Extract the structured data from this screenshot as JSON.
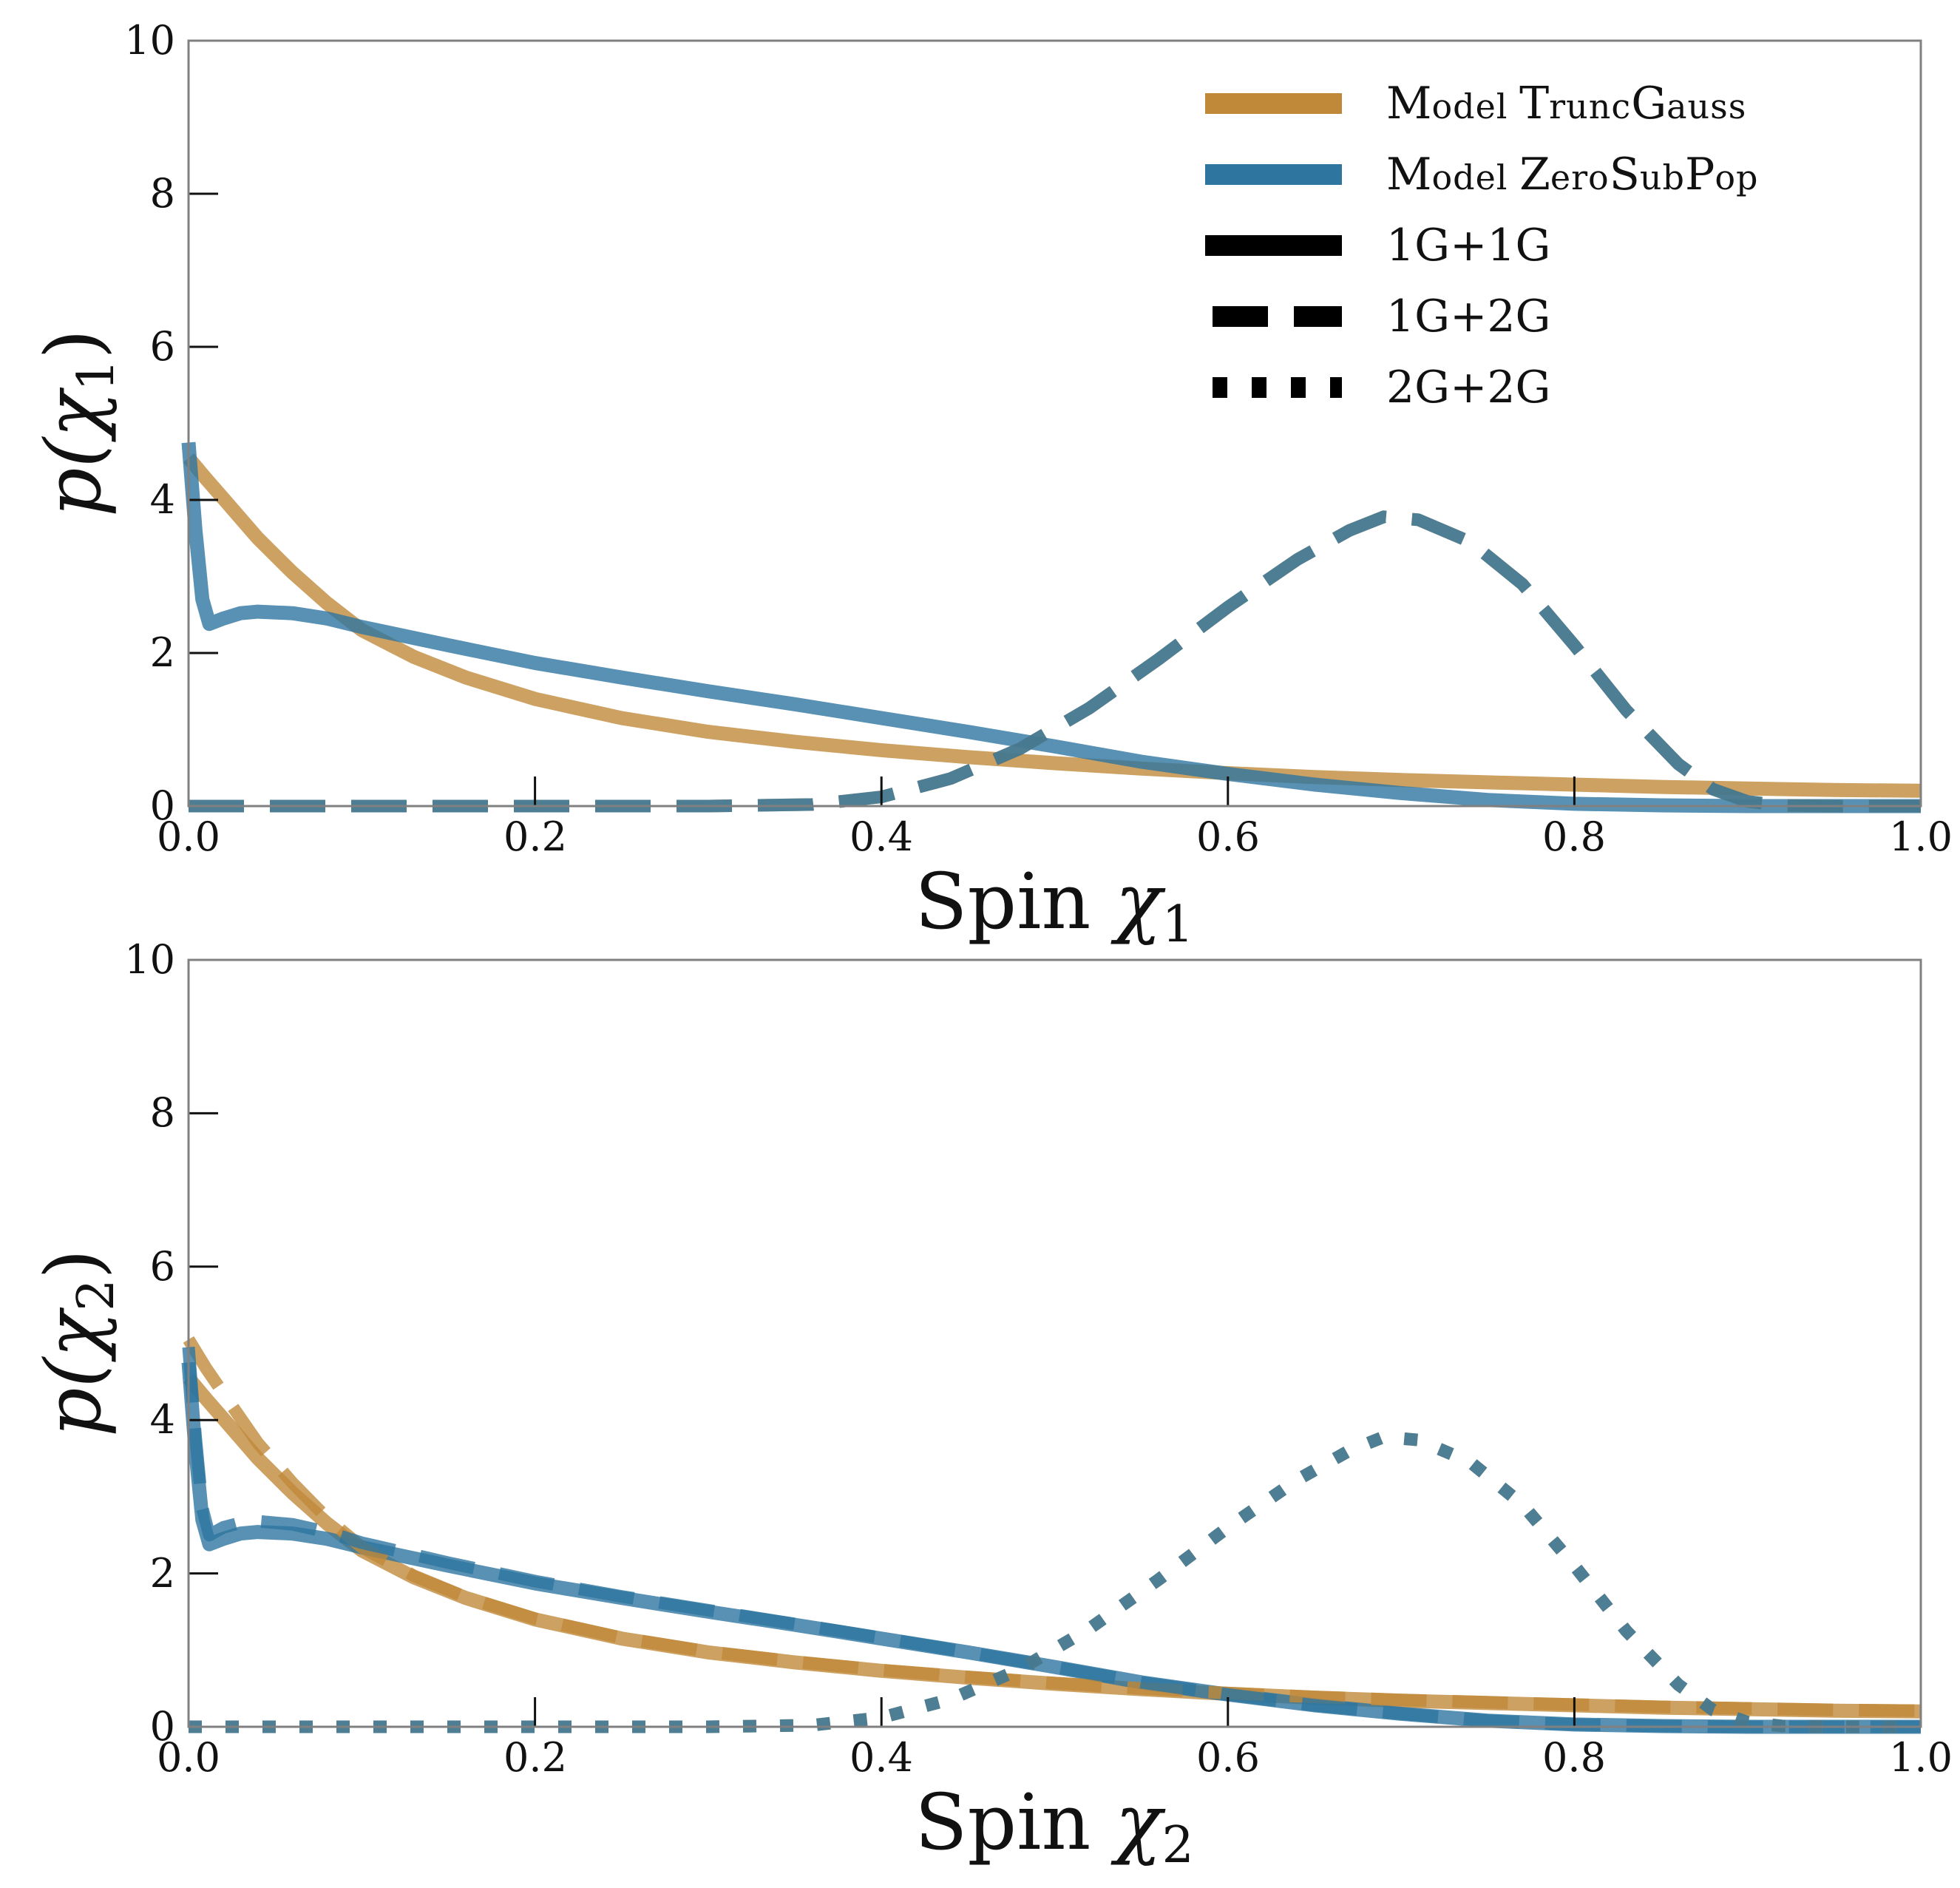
{
  "colors": {
    "trunc": "#C0893A",
    "zero": "#2E76A0",
    "frame": "#808080",
    "legend_style": "#000000"
  },
  "legend": {
    "model_trunc": [
      "M",
      "odel ",
      "T",
      "runc",
      "G",
      "auss"
    ],
    "model_zero": [
      "M",
      "odel ",
      "Z",
      "ero",
      "S",
      "ub",
      "P",
      "op"
    ],
    "g11": "1G+1G",
    "g12": "1G+2G",
    "g22": "2G+2G"
  },
  "chart_data": [
    {
      "type": "line",
      "id": "chi1",
      "ylabel_parts": [
        "p(χ",
        "1",
        ")"
      ],
      "xlabel_parts": [
        "Spin ",
        "χ",
        "1"
      ],
      "xlim": [
        0,
        1
      ],
      "ylim": [
        0,
        10
      ],
      "xticks": [
        "0.0",
        "0.2",
        "0.4",
        "0.6",
        "0.8",
        "1.0"
      ],
      "yticks": [
        "0",
        "2",
        "4",
        "6",
        "8",
        "10"
      ],
      "series": [
        {
          "name": "TruncGauss 1G+1G",
          "model": "trunc",
          "style": "solid",
          "curve": "trunc"
        },
        {
          "name": "ZeroSubPop 1G+1G",
          "model": "zero",
          "style": "solid",
          "curve": "zero"
        },
        {
          "name": "TruncGauss 1G+2G",
          "model": "trunc",
          "style": "dashed",
          "curve": "peak"
        },
        {
          "name": "ZeroSubPop 1G+2G",
          "model": "zero",
          "style": "dashed",
          "curve": "peak"
        }
      ]
    },
    {
      "type": "line",
      "id": "chi2",
      "ylabel_parts": [
        "p(χ",
        "2",
        ")"
      ],
      "xlabel_parts": [
        "Spin ",
        "χ",
        "2"
      ],
      "xlim": [
        0,
        1
      ],
      "ylim": [
        0,
        10
      ],
      "xticks": [
        "0.0",
        "0.2",
        "0.4",
        "0.6",
        "0.8",
        "1.0"
      ],
      "yticks": [
        "0",
        "2",
        "4",
        "6",
        "8",
        "10"
      ],
      "series": [
        {
          "name": "TruncGauss 1G+1G",
          "model": "trunc",
          "style": "solid",
          "curve": "trunc"
        },
        {
          "name": "ZeroSubPop 1G+1G",
          "model": "zero",
          "style": "solid",
          "curve": "zero"
        },
        {
          "name": "TruncGauss 1G+2G",
          "model": "trunc",
          "style": "dashed",
          "curve": "trunc2"
        },
        {
          "name": "ZeroSubPop 1G+2G",
          "model": "zero",
          "style": "dashed",
          "curve": "zero2"
        },
        {
          "name": "TruncGauss 2G+2G",
          "model": "trunc",
          "style": "dotted",
          "curve": "peak"
        },
        {
          "name": "ZeroSubPop 2G+2G",
          "model": "zero",
          "style": "dotted",
          "curve": "peak"
        }
      ]
    }
  ],
  "curves": {
    "trunc": [
      [
        0,
        4.55
      ],
      [
        0.01,
        4.28
      ],
      [
        0.02,
        4.02
      ],
      [
        0.04,
        3.5
      ],
      [
        0.06,
        3.05
      ],
      [
        0.08,
        2.65
      ],
      [
        0.1,
        2.3
      ],
      [
        0.13,
        1.95
      ],
      [
        0.16,
        1.68
      ],
      [
        0.2,
        1.4
      ],
      [
        0.25,
        1.15
      ],
      [
        0.3,
        0.97
      ],
      [
        0.35,
        0.84
      ],
      [
        0.4,
        0.73
      ],
      [
        0.45,
        0.64
      ],
      [
        0.5,
        0.56
      ],
      [
        0.55,
        0.49
      ],
      [
        0.6,
        0.43
      ],
      [
        0.65,
        0.38
      ],
      [
        0.7,
        0.34
      ],
      [
        0.75,
        0.31
      ],
      [
        0.8,
        0.28
      ],
      [
        0.85,
        0.25
      ],
      [
        0.9,
        0.23
      ],
      [
        0.95,
        0.21
      ],
      [
        1.0,
        0.2
      ]
    ],
    "zero": [
      [
        0,
        4.75
      ],
      [
        0.004,
        3.6
      ],
      [
        0.008,
        2.7
      ],
      [
        0.012,
        2.38
      ],
      [
        0.02,
        2.45
      ],
      [
        0.03,
        2.52
      ],
      [
        0.04,
        2.54
      ],
      [
        0.06,
        2.52
      ],
      [
        0.08,
        2.45
      ],
      [
        0.1,
        2.34
      ],
      [
        0.15,
        2.1
      ],
      [
        0.2,
        1.87
      ],
      [
        0.25,
        1.68
      ],
      [
        0.3,
        1.5
      ],
      [
        0.35,
        1.33
      ],
      [
        0.4,
        1.15
      ],
      [
        0.45,
        0.97
      ],
      [
        0.5,
        0.78
      ],
      [
        0.55,
        0.58
      ],
      [
        0.6,
        0.42
      ],
      [
        0.65,
        0.28
      ],
      [
        0.7,
        0.17
      ],
      [
        0.75,
        0.08
      ],
      [
        0.8,
        0.03
      ],
      [
        0.85,
        0.01
      ],
      [
        0.9,
        0.0
      ],
      [
        1.0,
        0.0
      ]
    ],
    "trunc2": [
      [
        0,
        5.05
      ],
      [
        0.01,
        4.68
      ],
      [
        0.02,
        4.35
      ],
      [
        0.04,
        3.7
      ],
      [
        0.06,
        3.18
      ],
      [
        0.08,
        2.72
      ],
      [
        0.1,
        2.34
      ],
      [
        0.13,
        1.97
      ],
      [
        0.16,
        1.69
      ],
      [
        0.2,
        1.41
      ],
      [
        0.25,
        1.16
      ],
      [
        0.3,
        0.98
      ],
      [
        0.35,
        0.85
      ],
      [
        0.4,
        0.74
      ],
      [
        0.45,
        0.65
      ],
      [
        0.5,
        0.57
      ],
      [
        0.55,
        0.5
      ],
      [
        0.6,
        0.44
      ],
      [
        0.65,
        0.39
      ],
      [
        0.7,
        0.35
      ],
      [
        0.75,
        0.32
      ],
      [
        0.8,
        0.29
      ],
      [
        0.85,
        0.26
      ],
      [
        0.9,
        0.24
      ],
      [
        0.95,
        0.22
      ],
      [
        1.0,
        0.21
      ]
    ],
    "zero2": [
      [
        0,
        4.95
      ],
      [
        0.004,
        3.8
      ],
      [
        0.008,
        2.85
      ],
      [
        0.012,
        2.5
      ],
      [
        0.02,
        2.6
      ],
      [
        0.03,
        2.66
      ],
      [
        0.04,
        2.68
      ],
      [
        0.06,
        2.64
      ],
      [
        0.08,
        2.54
      ],
      [
        0.1,
        2.4
      ],
      [
        0.15,
        2.14
      ],
      [
        0.2,
        1.9
      ],
      [
        0.25,
        1.7
      ],
      [
        0.3,
        1.52
      ],
      [
        0.35,
        1.34
      ],
      [
        0.4,
        1.16
      ],
      [
        0.45,
        0.97
      ],
      [
        0.5,
        0.78
      ],
      [
        0.55,
        0.58
      ],
      [
        0.6,
        0.42
      ],
      [
        0.65,
        0.28
      ],
      [
        0.7,
        0.17
      ],
      [
        0.75,
        0.08
      ],
      [
        0.8,
        0.03
      ],
      [
        0.85,
        0.01
      ],
      [
        0.9,
        0.0
      ],
      [
        1.0,
        0.0
      ]
    ],
    "peak": [
      [
        0,
        0.0
      ],
      [
        0.3,
        0.0
      ],
      [
        0.36,
        0.02
      ],
      [
        0.4,
        0.12
      ],
      [
        0.44,
        0.36
      ],
      [
        0.48,
        0.75
      ],
      [
        0.52,
        1.28
      ],
      [
        0.56,
        1.92
      ],
      [
        0.6,
        2.6
      ],
      [
        0.64,
        3.22
      ],
      [
        0.67,
        3.6
      ],
      [
        0.69,
        3.78
      ],
      [
        0.71,
        3.74
      ],
      [
        0.74,
        3.45
      ],
      [
        0.77,
        2.9
      ],
      [
        0.8,
        2.1
      ],
      [
        0.83,
        1.25
      ],
      [
        0.86,
        0.55
      ],
      [
        0.88,
        0.22
      ],
      [
        0.9,
        0.06
      ],
      [
        0.92,
        0.01
      ],
      [
        0.95,
        0.0
      ],
      [
        1.0,
        0.0
      ]
    ]
  }
}
